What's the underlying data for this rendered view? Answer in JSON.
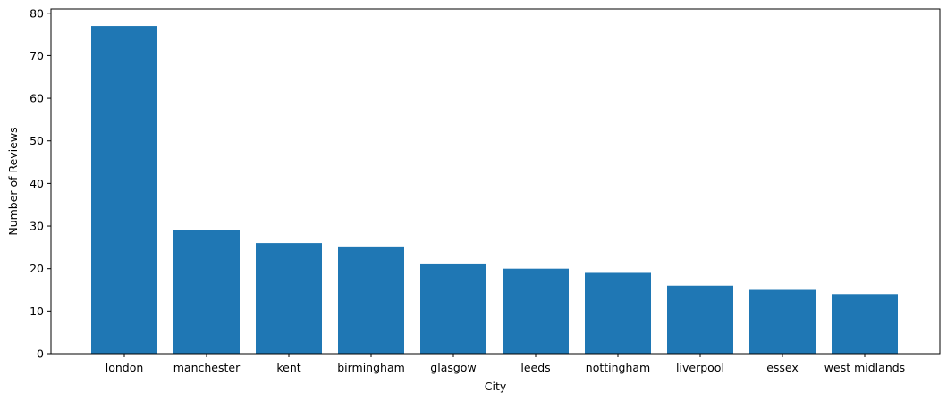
{
  "chart_data": {
    "type": "bar",
    "title": "",
    "xlabel": "City",
    "ylabel": "Number of Reviews",
    "categories": [
      "london",
      "manchester",
      "kent",
      "birmingham",
      "glasgow",
      "leeds",
      "nottingham",
      "liverpool",
      "essex",
      "west midlands"
    ],
    "values": [
      77,
      29,
      26,
      25,
      21,
      20,
      19,
      16,
      15,
      14
    ],
    "ylim": [
      0,
      81
    ],
    "yticks": [
      "0",
      "10",
      "20",
      "30",
      "40",
      "50",
      "60",
      "70",
      "80"
    ],
    "grid": false,
    "bar_color": "#1f77b4"
  }
}
